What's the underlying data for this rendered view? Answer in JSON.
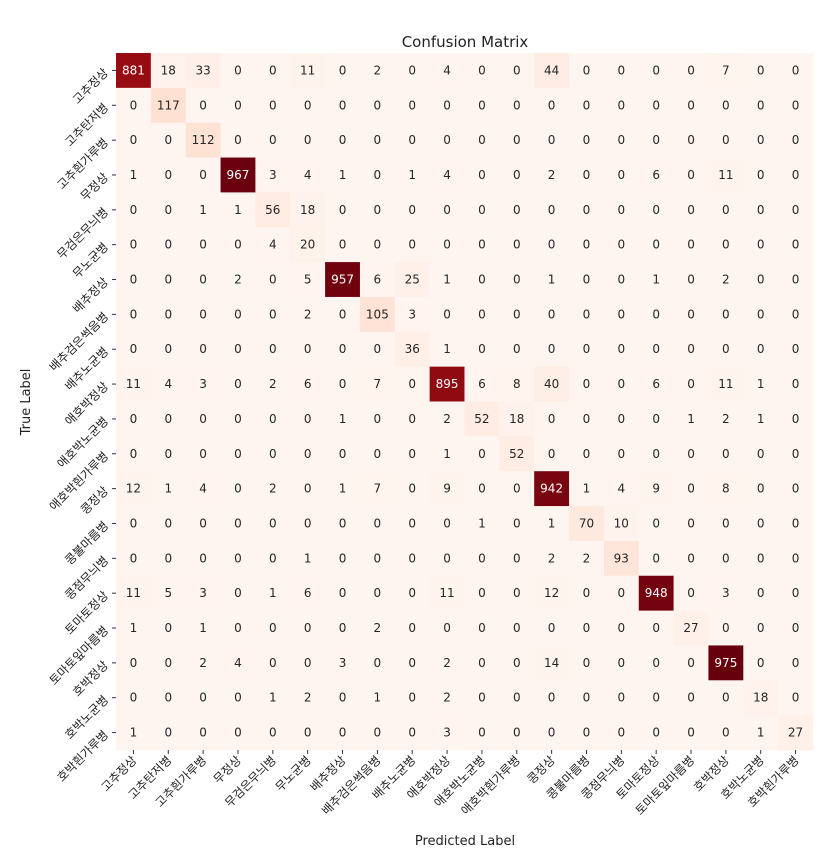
{
  "chart_data": {
    "type": "heatmap",
    "title": "Confusion Matrix",
    "xlabel": "Predicted Label",
    "ylabel": "True Label",
    "labels": [
      "고추정상",
      "고추탄저병",
      "고추흰가루병",
      "무정상",
      "무검은무늬병",
      "무노균병",
      "배추정상",
      "배추검은썩음병",
      "배추노균병",
      "애호박정상",
      "애호박노균병",
      "애호박흰가루병",
      "콩정상",
      "콩불마름병",
      "콩점무늬병",
      "토마토정상",
      "토마토잎마름병",
      "호박정상",
      "호박노균병",
      "호박흰가루병"
    ],
    "matrix": [
      [
        881,
        18,
        33,
        0,
        0,
        11,
        0,
        2,
        0,
        4,
        0,
        0,
        44,
        0,
        0,
        0,
        0,
        7,
        0,
        0
      ],
      [
        0,
        117,
        0,
        0,
        0,
        0,
        0,
        0,
        0,
        0,
        0,
        0,
        0,
        0,
        0,
        0,
        0,
        0,
        0,
        0
      ],
      [
        0,
        0,
        112,
        0,
        0,
        0,
        0,
        0,
        0,
        0,
        0,
        0,
        0,
        0,
        0,
        0,
        0,
        0,
        0,
        0
      ],
      [
        1,
        0,
        0,
        967,
        3,
        4,
        1,
        0,
        1,
        4,
        0,
        0,
        2,
        0,
        0,
        6,
        0,
        11,
        0,
        0
      ],
      [
        0,
        0,
        1,
        1,
        56,
        18,
        0,
        0,
        0,
        0,
        0,
        0,
        0,
        0,
        0,
        0,
        0,
        0,
        0,
        0
      ],
      [
        0,
        0,
        0,
        0,
        4,
        20,
        0,
        0,
        0,
        0,
        0,
        0,
        0,
        0,
        0,
        0,
        0,
        0,
        0,
        0
      ],
      [
        0,
        0,
        0,
        2,
        0,
        5,
        957,
        6,
        25,
        1,
        0,
        0,
        1,
        0,
        0,
        1,
        0,
        2,
        0,
        0
      ],
      [
        0,
        0,
        0,
        0,
        0,
        2,
        0,
        105,
        3,
        0,
        0,
        0,
        0,
        0,
        0,
        0,
        0,
        0,
        0,
        0
      ],
      [
        0,
        0,
        0,
        0,
        0,
        0,
        0,
        0,
        36,
        1,
        0,
        0,
        0,
        0,
        0,
        0,
        0,
        0,
        0,
        0
      ],
      [
        11,
        4,
        3,
        0,
        2,
        6,
        0,
        7,
        0,
        895,
        6,
        8,
        40,
        0,
        0,
        6,
        0,
        11,
        1,
        0
      ],
      [
        0,
        0,
        0,
        0,
        0,
        0,
        1,
        0,
        0,
        2,
        52,
        18,
        0,
        0,
        0,
        0,
        1,
        2,
        1,
        0
      ],
      [
        0,
        0,
        0,
        0,
        0,
        0,
        0,
        0,
        0,
        1,
        0,
        52,
        0,
        0,
        0,
        0,
        0,
        0,
        0,
        0
      ],
      [
        12,
        1,
        4,
        0,
        2,
        0,
        1,
        7,
        0,
        9,
        0,
        0,
        942,
        1,
        4,
        9,
        0,
        8,
        0,
        0
      ],
      [
        0,
        0,
        0,
        0,
        0,
        0,
        0,
        0,
        0,
        0,
        1,
        0,
        1,
        70,
        10,
        0,
        0,
        0,
        0,
        0
      ],
      [
        0,
        0,
        0,
        0,
        0,
        1,
        0,
        0,
        0,
        0,
        0,
        0,
        2,
        2,
        93,
        0,
        0,
        0,
        0,
        0
      ],
      [
        11,
        5,
        3,
        0,
        1,
        6,
        0,
        0,
        0,
        11,
        0,
        0,
        12,
        0,
        0,
        948,
        0,
        3,
        0,
        0
      ],
      [
        1,
        0,
        1,
        0,
        0,
        0,
        0,
        2,
        0,
        0,
        0,
        0,
        0,
        0,
        0,
        0,
        27,
        0,
        0,
        0
      ],
      [
        0,
        0,
        2,
        4,
        0,
        0,
        3,
        0,
        0,
        2,
        0,
        0,
        14,
        0,
        0,
        0,
        0,
        975,
        0,
        0
      ],
      [
        0,
        0,
        0,
        0,
        1,
        2,
        0,
        1,
        0,
        2,
        0,
        0,
        0,
        0,
        0,
        0,
        0,
        0,
        18,
        0
      ],
      [
        1,
        0,
        0,
        0,
        0,
        0,
        0,
        0,
        0,
        3,
        0,
        0,
        0,
        0,
        0,
        0,
        0,
        0,
        1,
        27
      ]
    ],
    "vmin": 0,
    "vmax": 975,
    "colormap": "Reds",
    "colorbar": false,
    "grid": false
  }
}
